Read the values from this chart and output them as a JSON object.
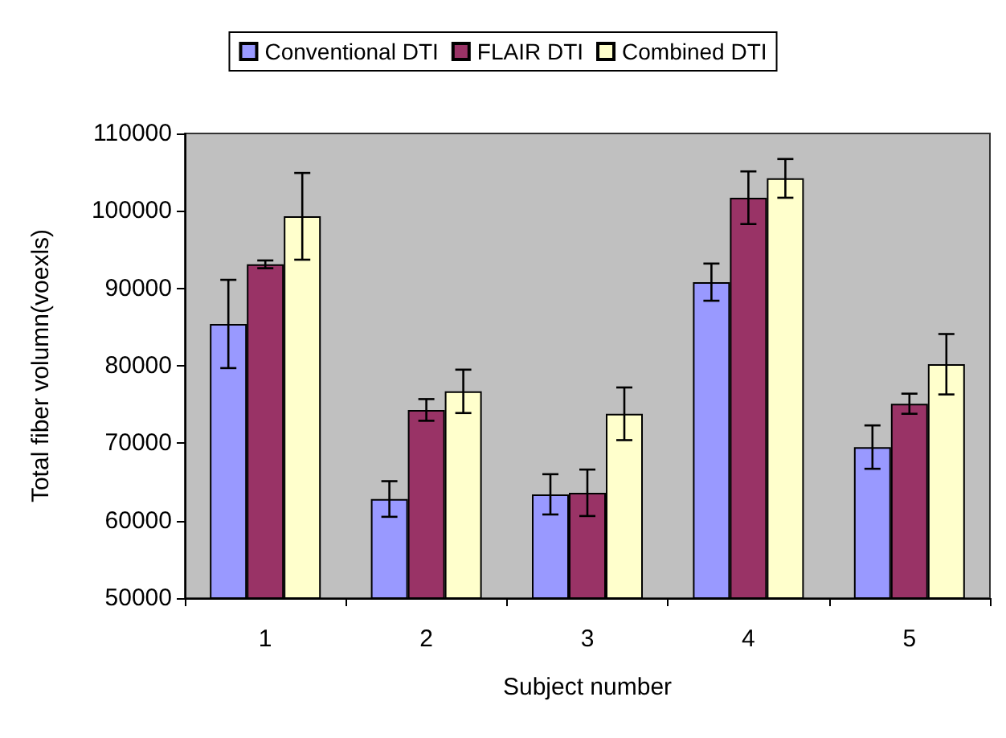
{
  "chart_data": {
    "type": "bar",
    "xlabel": "Subject number",
    "ylabel": "Total fiber volumn(voexls)",
    "categories": [
      "1",
      "2",
      "3",
      "4",
      "5"
    ],
    "series": [
      {
        "name": "Conventional DTI",
        "color": "#9999ff",
        "values": [
          85400,
          62800,
          63400,
          90800,
          69500
        ],
        "errors": [
          5700,
          2300,
          2600,
          2400,
          2800
        ]
      },
      {
        "name": "FLAIR DTI",
        "color": "#993366",
        "values": [
          93100,
          74300,
          63600,
          101700,
          75100
        ],
        "errors": [
          500,
          1400,
          3000,
          3400,
          1300
        ]
      },
      {
        "name": "Combined DTI",
        "color": "#ffffcc",
        "values": [
          99300,
          76700,
          73800,
          104200,
          80200
        ],
        "errors": [
          5600,
          2800,
          3400,
          2500,
          3900
        ]
      }
    ],
    "ylim": [
      50000,
      110000
    ],
    "yticks": [
      50000,
      60000,
      70000,
      80000,
      90000,
      100000,
      110000
    ],
    "grid": false,
    "legend": "top"
  }
}
